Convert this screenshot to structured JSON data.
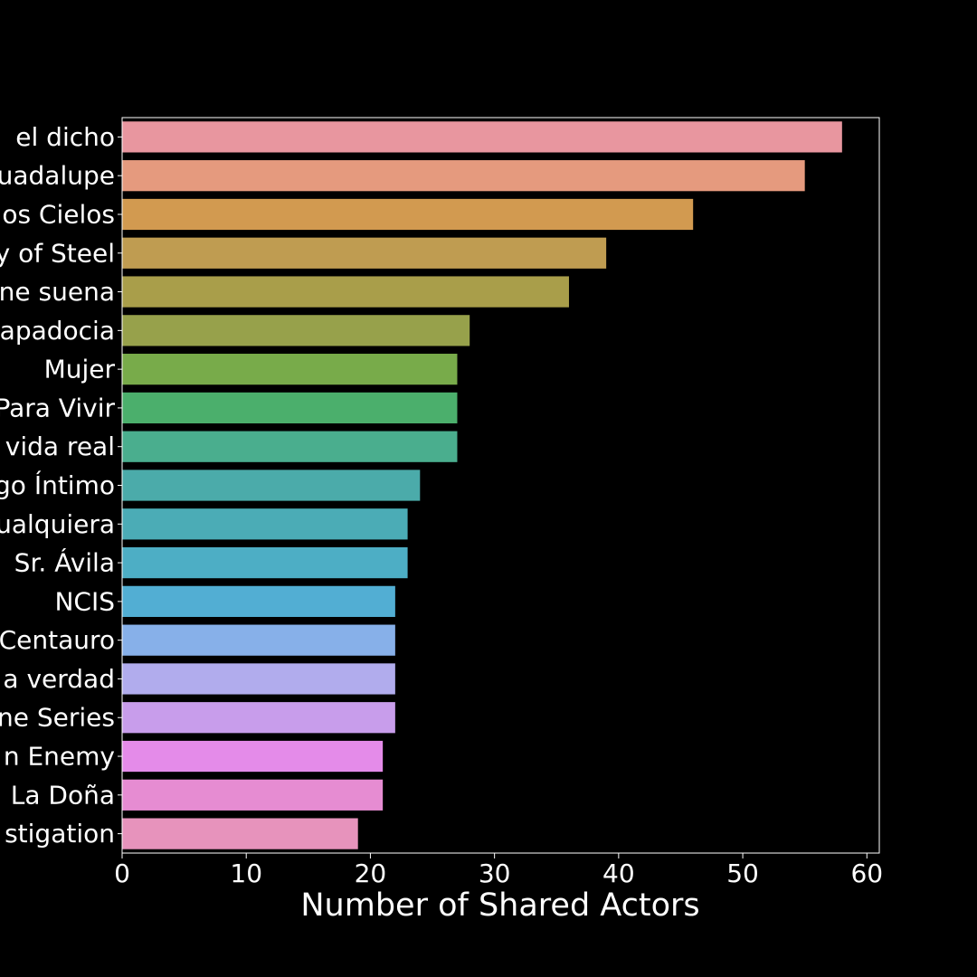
{
  "chart_data": {
    "type": "bar",
    "orientation": "horizontal",
    "title": "",
    "xlabel": "Number of Shared Actors",
    "ylabel": "",
    "xlim": [
      0,
      61
    ],
    "xticks": [
      0,
      10,
      20,
      30,
      40,
      50,
      60
    ],
    "grid": false,
    "legend": "none",
    "background": "#000000",
    "text_color": "#ffffff",
    "categories": [
      "el dicho",
      "uadalupe",
      "os Cielos",
      "y of Steel",
      "ne suena",
      "apadocia",
      "Mujer",
      "Para Vivir",
      "vida real",
      "go Íntimo",
      "ualquiera",
      "Sr. Ávila",
      "NCIS",
      "Centauro",
      "a verdad",
      "ne Series",
      "n Enemy",
      "La Doña",
      "stigation"
    ],
    "values": [
      58,
      55,
      46,
      39,
      36,
      28,
      27,
      27,
      27,
      24,
      23,
      23,
      22,
      22,
      22,
      22,
      21,
      21,
      19
    ],
    "colors": [
      "#e8969f",
      "#e59a7e",
      "#d29a50",
      "#bf9c51",
      "#a99e4a",
      "#97a14b",
      "#78ab4a",
      "#4baf6c",
      "#4aae8e",
      "#4babaa",
      "#4bacb6",
      "#4daec5",
      "#52aed3",
      "#87b0e9",
      "#b1aced",
      "#c89deb",
      "#e48be9",
      "#e68cd2",
      "#e793bc"
    ]
  }
}
